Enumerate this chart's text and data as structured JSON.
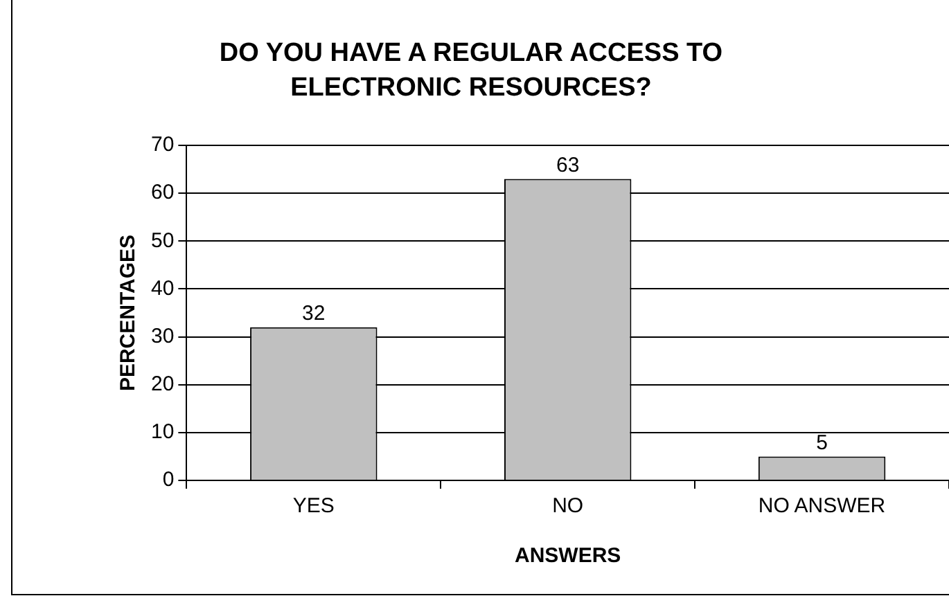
{
  "chart_data": {
    "type": "bar",
    "title": "DO YOU HAVE A REGULAR ACCESS TO ELECTRONIC RESOURCES?",
    "xlabel": "ANSWERS",
    "ylabel": "PERCENTAGES",
    "categories": [
      "YES",
      "NO",
      "NO ANSWER"
    ],
    "values": [
      32,
      63,
      5
    ],
    "color": "#c0c0c0",
    "ylim": [
      0,
      70
    ],
    "yticks": [
      0,
      10,
      20,
      30,
      40,
      50,
      60,
      70
    ],
    "grid": "y",
    "legend": false,
    "data_labels": true
  }
}
